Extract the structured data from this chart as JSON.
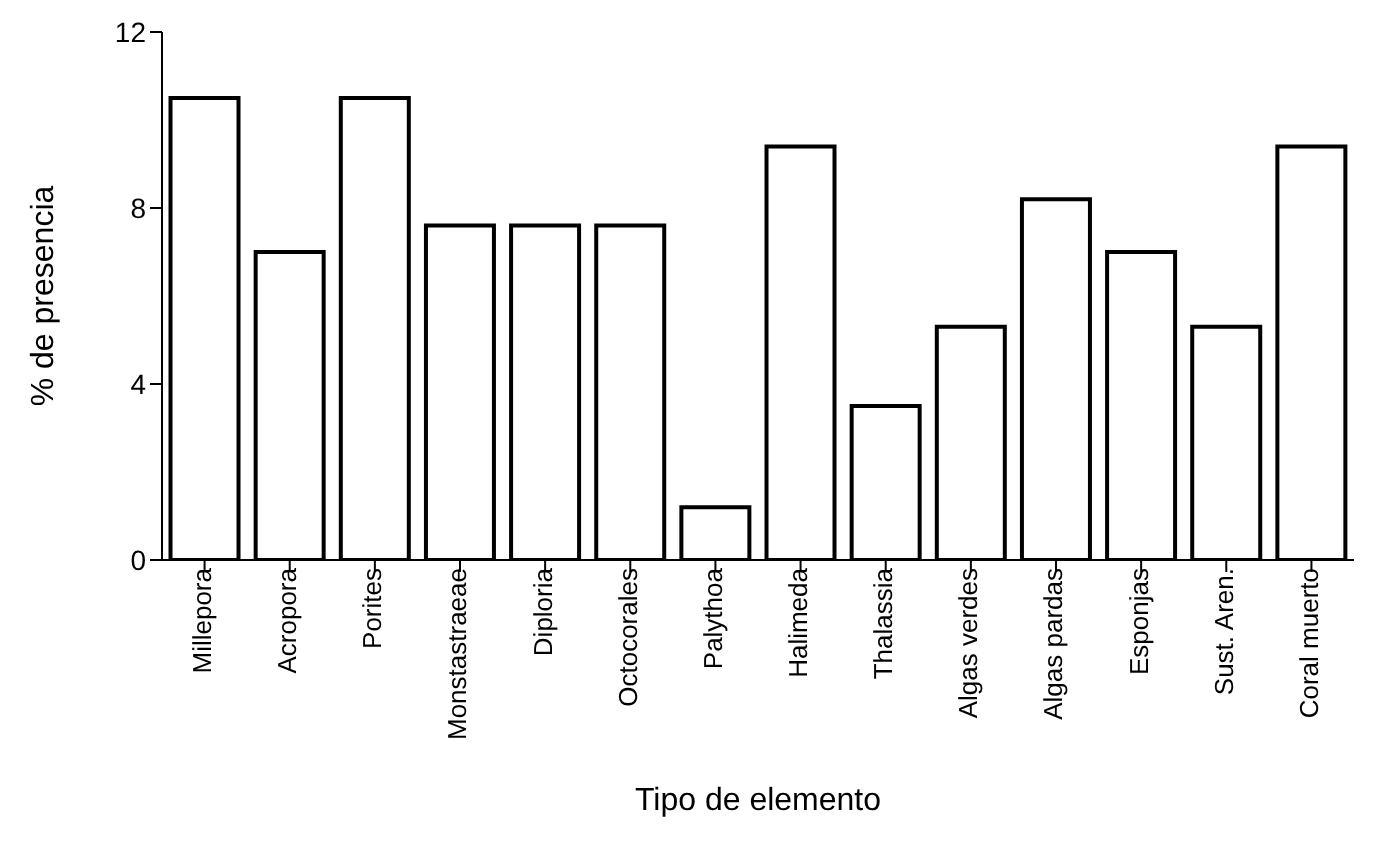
{
  "chart_data": {
    "type": "bar",
    "xlabel": "Tipo de elemento",
    "ylabel": "% de presencia",
    "categories": [
      "Millepora",
      "Acropora",
      "Porites",
      "Monstastraeae",
      "Diploria",
      "Octocorales",
      "Palythoa",
      "Halimeda",
      "Thalassia",
      "Algas verdes",
      "Algas pardas",
      "Esponjas",
      "Sust. Aren.",
      "Coral muerto"
    ],
    "values": [
      10.5,
      7.0,
      10.5,
      7.6,
      7.6,
      7.6,
      1.2,
      9.4,
      3.5,
      5.3,
      8.2,
      7.0,
      5.3,
      9.4
    ],
    "color": "#ffffff",
    "ylim": [
      0,
      12
    ],
    "yticks": [
      0,
      4,
      8,
      12
    ],
    "grid": false,
    "legend": false
  }
}
